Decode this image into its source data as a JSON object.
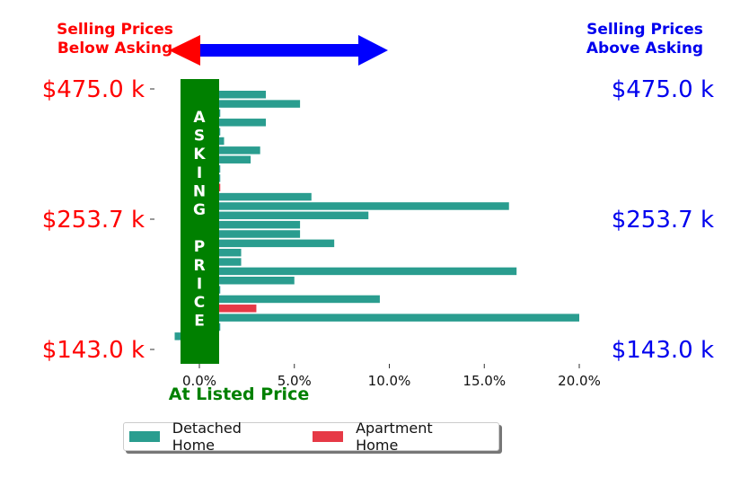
{
  "annotations": {
    "below_asking": "Selling Prices\nBelow Asking",
    "above_asking": "Selling Prices\nAbove Asking",
    "asking_price": "ASKING\n\nPRICE",
    "at_listed_price": "At Listed Price"
  },
  "colors": {
    "detached": "#2a9d8f",
    "apartment": "#e63946",
    "left_axis": "#ff0000",
    "right_axis": "#0000ee",
    "asking_band": "#008000",
    "arrow_left": "#ff0000",
    "arrow_right": "#0000ff"
  },
  "chart_data": {
    "type": "bar",
    "orientation": "horizontal",
    "xlabel": "At Listed Price",
    "xlim": [
      -2.0,
      20.0
    ],
    "xticks": [
      "0.0%",
      "5.0%",
      "10.0%",
      "15.0%",
      "20.0%"
    ],
    "xtick_values": [
      0,
      5,
      10,
      15,
      20
    ],
    "yticks_left": [
      "$475.0 k",
      "$253.7 k",
      "$143.0 k"
    ],
    "yticks_right": [
      "$475.0 k",
      "$253.7 k",
      "$143.0 k"
    ],
    "grid": false,
    "legend_placement": "bottom-center",
    "series": [
      {
        "name": "Detached Home",
        "color": "#2a9d8f"
      },
      {
        "name": "Apartment Home",
        "color": "#e63946"
      }
    ],
    "bars": [
      {
        "series": "Detached Home",
        "value": 3.5
      },
      {
        "series": "Detached Home",
        "value": 5.3
      },
      {
        "series": "Detached Home",
        "value": 1.1
      },
      {
        "series": "Detached Home",
        "value": 3.5
      },
      {
        "series": "Detached Home",
        "value": 1.1
      },
      {
        "series": "Detached Home",
        "value": 1.3
      },
      {
        "series": "Detached Home",
        "value": 3.2
      },
      {
        "series": "Detached Home",
        "value": 2.7
      },
      {
        "series": "Detached Home",
        "value": 1.1
      },
      {
        "series": "Detached Home",
        "value": 1.1
      },
      {
        "series": "Apartment Home",
        "value": 1.1
      },
      {
        "series": "Detached Home",
        "value": 5.9
      },
      {
        "series": "Detached Home",
        "value": 16.3
      },
      {
        "series": "Detached Home",
        "value": 8.9
      },
      {
        "series": "Detached Home",
        "value": 5.3
      },
      {
        "series": "Detached Home",
        "value": 5.3
      },
      {
        "series": "Detached Home",
        "value": 7.1
      },
      {
        "series": "Detached Home",
        "value": 2.2
      },
      {
        "series": "Detached Home",
        "value": 2.2
      },
      {
        "series": "Detached Home",
        "value": 16.7
      },
      {
        "series": "Detached Home",
        "value": 5.0
      },
      {
        "series": "Detached Home",
        "value": 1.1
      },
      {
        "series": "Detached Home",
        "value": 9.5
      },
      {
        "series": "Apartment Home",
        "value": 3.0
      },
      {
        "series": "Detached Home",
        "value": 20.0
      },
      {
        "series": "Detached Home",
        "value": 1.1
      },
      {
        "series": "Detached Home",
        "value": -1.3
      }
    ]
  }
}
